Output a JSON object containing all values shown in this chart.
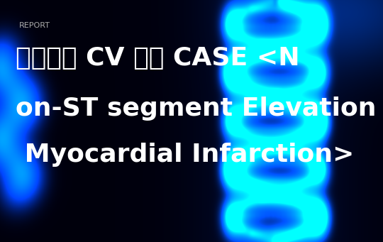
{
  "report_label": "REPORT",
  "main_text_line1": "심장내과 CV 실습 CASE <N",
  "main_text_line2": "on-ST segment Elevation",
  "main_text_line3": " Myocardial Infarction>",
  "bg_color": "#030c14",
  "text_color": "#ffffff",
  "report_color": "#aaaaaa",
  "report_fontsize": 8,
  "main_fontsize": 26,
  "fig_width": 5.4,
  "fig_height": 3.41,
  "dpi": 100
}
